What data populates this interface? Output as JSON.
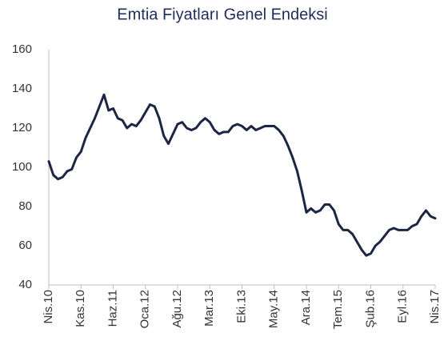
{
  "chart_data": {
    "type": "line",
    "title": "Emtia Fiyatları Genel Endeksi",
    "categories": [
      "Nis.10",
      null,
      null,
      null,
      null,
      null,
      null,
      "Kas.10",
      null,
      null,
      null,
      null,
      null,
      null,
      "Haz.11",
      null,
      null,
      null,
      null,
      null,
      null,
      "Oca.12",
      null,
      null,
      null,
      null,
      null,
      null,
      "Ağu.12",
      null,
      null,
      null,
      null,
      null,
      null,
      "Mar.13",
      null,
      null,
      null,
      null,
      null,
      null,
      "Eki.13",
      null,
      null,
      null,
      null,
      null,
      null,
      "May.14",
      null,
      null,
      null,
      null,
      null,
      null,
      "Ara.14",
      null,
      null,
      null,
      null,
      null,
      null,
      "Tem.15",
      null,
      null,
      null,
      null,
      null,
      null,
      "Şub.16",
      null,
      null,
      null,
      null,
      null,
      null,
      "Eyl.16",
      null,
      null,
      null,
      null,
      null,
      null,
      "Nis.17"
    ],
    "values": [
      103,
      96,
      94,
      95,
      98,
      99,
      105,
      108,
      115,
      120,
      125,
      131,
      137,
      129,
      130,
      125,
      124,
      120,
      122,
      121,
      124,
      128,
      132,
      131,
      125,
      116,
      112,
      117,
      122,
      123,
      120,
      119,
      120,
      123,
      125,
      123,
      119,
      117,
      118,
      118,
      121,
      122,
      121,
      119,
      121,
      119,
      120,
      121,
      121,
      121,
      119,
      116,
      111,
      105,
      98,
      88,
      77,
      79,
      77,
      78,
      81,
      81,
      78,
      71,
      68,
      68,
      66,
      62,
      58,
      55,
      56,
      60,
      62,
      65,
      68,
      69,
      68,
      68,
      68,
      70,
      71,
      75,
      78,
      75,
      74
    ],
    "color": "#1c2541",
    "ylim": [
      40,
      160
    ],
    "yticks": [
      40,
      60,
      80,
      100,
      120,
      140,
      160
    ],
    "grid": false
  }
}
